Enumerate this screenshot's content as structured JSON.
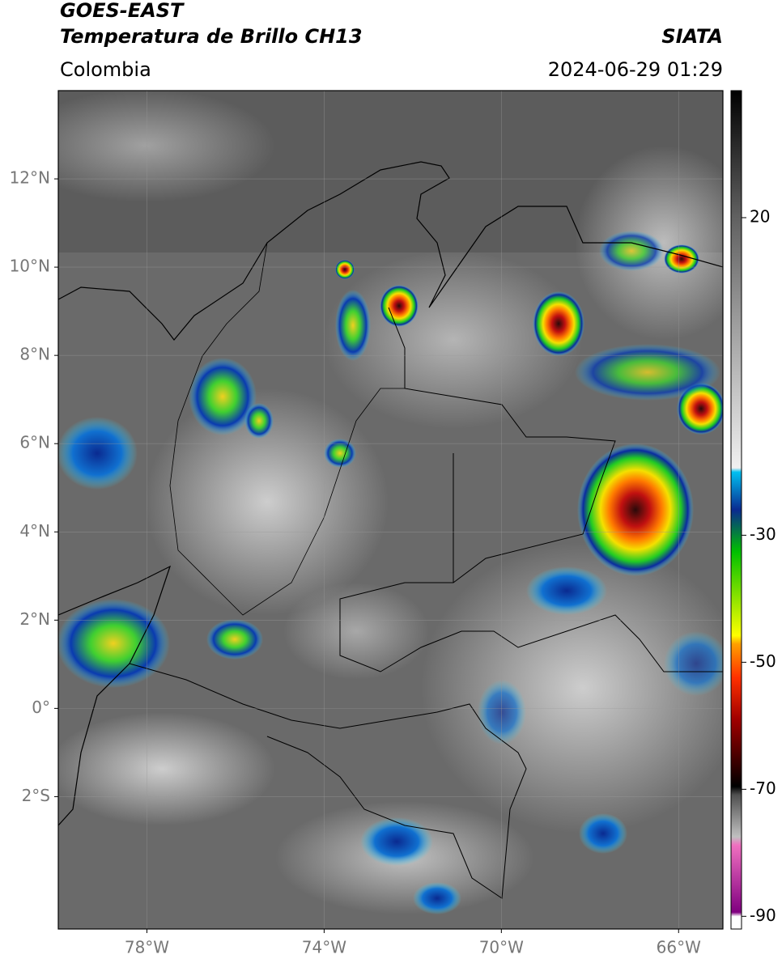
{
  "header": {
    "satellite": "GOES-EAST",
    "product": "Temperatura de Brillo CH13",
    "source": "SIATA",
    "region": "Colombia",
    "timestamp": "2024-06-29 01:29"
  },
  "map": {
    "xlim": [
      -80,
      -65
    ],
    "ylim": [
      -5,
      14
    ],
    "xticks": [
      {
        "value": -78,
        "label": "78°W"
      },
      {
        "value": -74,
        "label": "74°W"
      },
      {
        "value": -70,
        "label": "70°W"
      },
      {
        "value": -66,
        "label": "66°W"
      }
    ],
    "yticks": [
      {
        "value": -2,
        "label": "2°S"
      },
      {
        "value": 0,
        "label": "0°"
      },
      {
        "value": 2,
        "label": "2°N"
      },
      {
        "value": 4,
        "label": "4°N"
      },
      {
        "value": 6,
        "label": "6°N"
      },
      {
        "value": 8,
        "label": "8°N"
      },
      {
        "value": 10,
        "label": "10°N"
      },
      {
        "value": 12,
        "label": "12°N"
      }
    ]
  },
  "colorbar": {
    "lim": [
      -92,
      40
    ],
    "ticks": [
      20,
      -30,
      -50,
      -70,
      -90
    ]
  }
}
